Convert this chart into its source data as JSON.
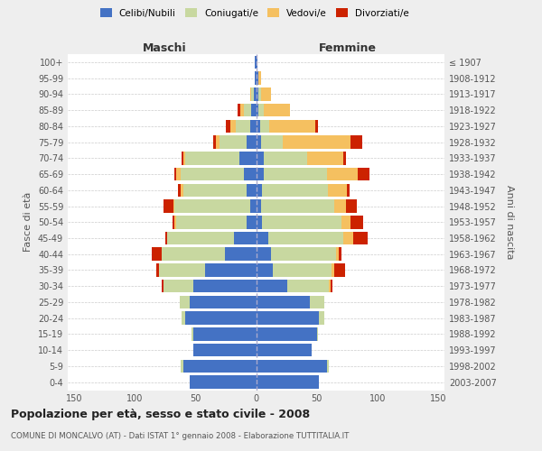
{
  "age_groups": [
    "100+",
    "95-99",
    "90-94",
    "85-89",
    "80-84",
    "75-79",
    "70-74",
    "65-69",
    "60-64",
    "55-59",
    "50-54",
    "45-49",
    "40-44",
    "35-39",
    "30-34",
    "25-29",
    "20-24",
    "15-19",
    "10-14",
    "5-9",
    "0-4"
  ],
  "birth_years": [
    "≤ 1907",
    "1908-1912",
    "1913-1917",
    "1918-1922",
    "1923-1927",
    "1928-1932",
    "1933-1937",
    "1938-1942",
    "1943-1947",
    "1948-1952",
    "1953-1957",
    "1958-1962",
    "1963-1967",
    "1968-1972",
    "1973-1977",
    "1978-1982",
    "1983-1987",
    "1988-1992",
    "1993-1997",
    "1998-2002",
    "2003-2007"
  ],
  "maschi": {
    "celibi": [
      1,
      1,
      2,
      4,
      5,
      8,
      14,
      10,
      8,
      5,
      8,
      18,
      26,
      42,
      52,
      55,
      58,
      52,
      52,
      60,
      55
    ],
    "coniugati": [
      0,
      0,
      2,
      6,
      12,
      22,
      44,
      52,
      52,
      62,
      58,
      55,
      52,
      38,
      24,
      8,
      3,
      1,
      0,
      2,
      0
    ],
    "vedovi": [
      0,
      0,
      1,
      3,
      4,
      3,
      2,
      4,
      2,
      1,
      1,
      0,
      0,
      0,
      0,
      0,
      0,
      0,
      0,
      0,
      0
    ],
    "divorziati": [
      0,
      0,
      0,
      2,
      4,
      2,
      1,
      1,
      2,
      8,
      2,
      2,
      8,
      2,
      2,
      0,
      0,
      0,
      0,
      0,
      0
    ]
  },
  "femmine": {
    "nubili": [
      1,
      2,
      2,
      2,
      3,
      4,
      6,
      6,
      5,
      4,
      5,
      10,
      12,
      14,
      26,
      44,
      52,
      50,
      46,
      58,
      52
    ],
    "coniugate": [
      0,
      0,
      2,
      4,
      8,
      18,
      36,
      52,
      54,
      60,
      65,
      62,
      54,
      48,
      34,
      12,
      4,
      1,
      0,
      2,
      0
    ],
    "vedove": [
      0,
      2,
      8,
      22,
      38,
      56,
      30,
      26,
      16,
      10,
      8,
      8,
      2,
      2,
      1,
      0,
      0,
      0,
      0,
      0,
      0
    ],
    "divorziate": [
      0,
      0,
      0,
      0,
      2,
      9,
      2,
      9,
      2,
      9,
      10,
      12,
      2,
      9,
      2,
      0,
      0,
      0,
      0,
      0,
      0
    ]
  },
  "colors": {
    "celibi_nubili": "#4472C4",
    "coniugati": "#c8d8a0",
    "vedovi": "#f5c060",
    "divorziati": "#cc2200"
  },
  "xlim": 155,
  "title": "Popolazione per età, sesso e stato civile - 2008",
  "subtitle": "COMUNE DI MONCALVO (AT) - Dati ISTAT 1° gennaio 2008 - Elaborazione TUTTITALIA.IT",
  "ylabel_left": "Fasce di età",
  "ylabel_right": "Anni di nascita",
  "xlabel_maschi": "Maschi",
  "xlabel_femmine": "Femmine",
  "legend_labels": [
    "Celibi/Nubili",
    "Coniugati/e",
    "Vedovi/e",
    "Divorziati/e"
  ],
  "bg_color": "#eeeeee",
  "plot_bg_color": "#ffffff"
}
